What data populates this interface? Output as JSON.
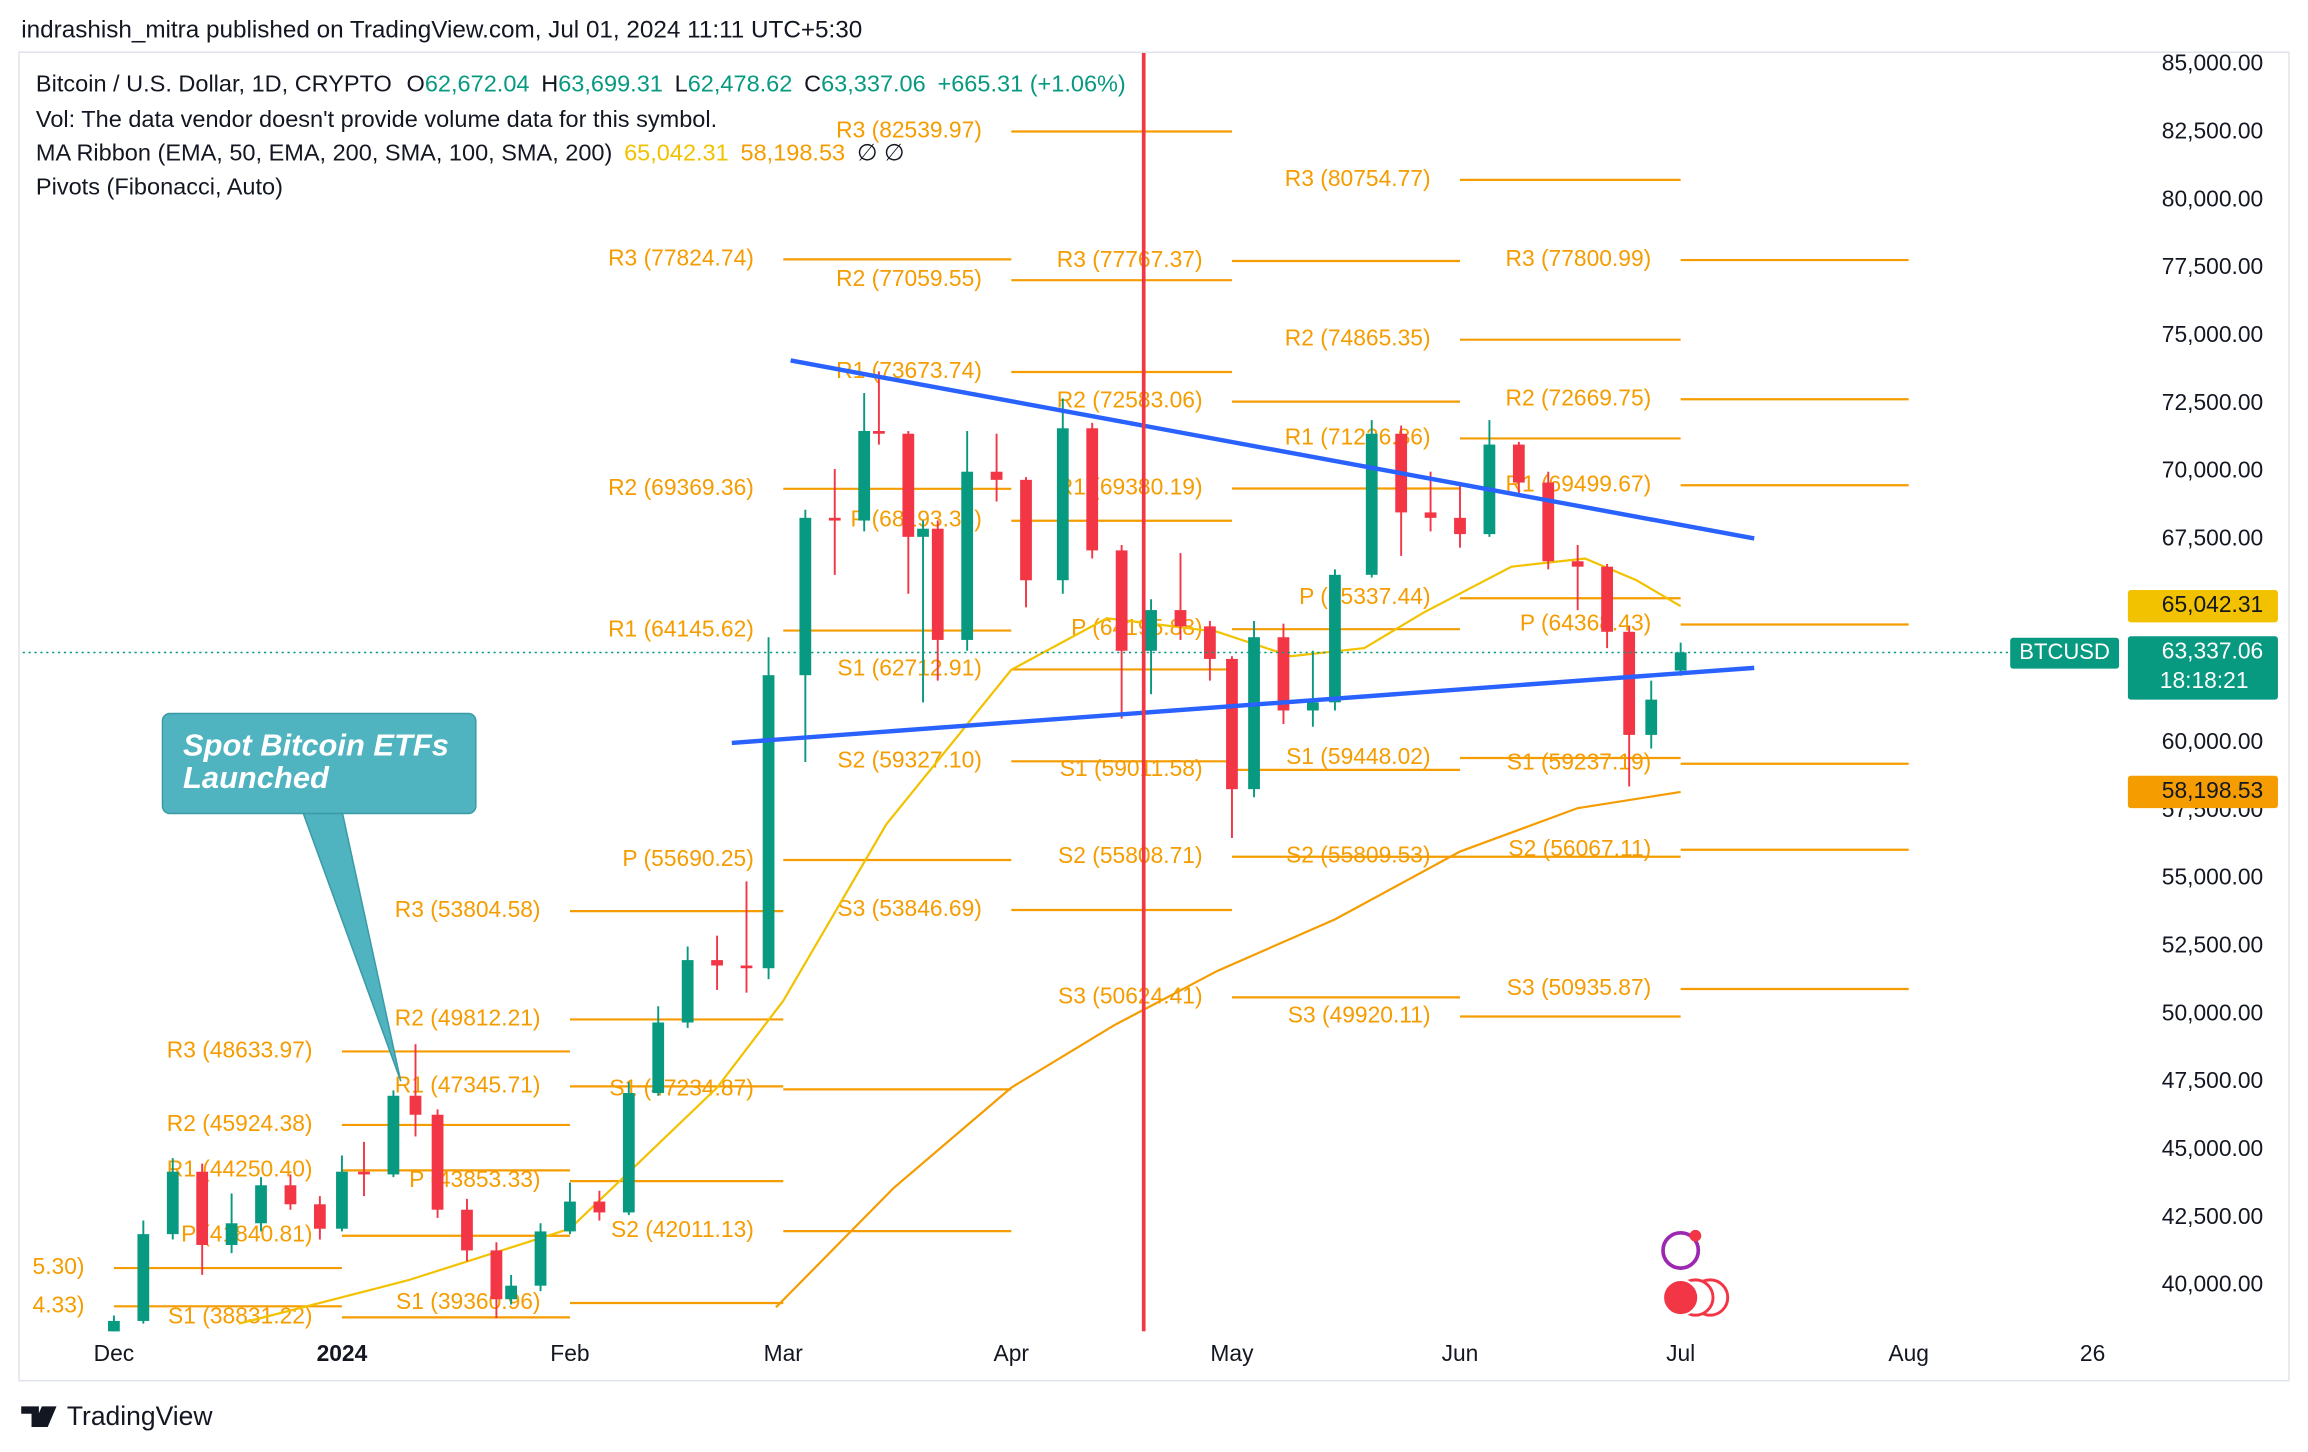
{
  "header": "indrashish_mitra published on TradingView.com, Jul 01, 2024 11:11 UTC+5:30",
  "footer": "TradingView",
  "chart_data": {
    "type": "candlestick",
    "symbol": "Bitcoin / U.S. Dollar, 1D, CRYPTO",
    "ohlc_legend": [
      {
        "key": "O",
        "label": "62,672.04"
      },
      {
        "key": "H",
        "label": "63,699.31"
      },
      {
        "key": "L",
        "label": "62,478.62"
      },
      {
        "key": "C",
        "label": "63,337.06"
      }
    ],
    "change": "+665.31 (+1.06%)",
    "volume_note": "Vol: The data vendor doesn't provide volume data for this symbol.",
    "ma_title": "MA Ribbon (EMA, 50, EMA, 200, SMA, 100, SMA, 200)",
    "ma_na": "∅  ∅",
    "pivots_title": "Pivots (Fibonacci, Auto)",
    "up_color": "#089981",
    "down_color": "#f23645",
    "x": [
      0,
      4,
      8,
      12,
      16,
      20,
      24,
      28,
      31,
      34,
      38,
      41,
      44,
      48,
      52,
      54,
      58,
      62,
      66,
      70,
      74,
      78,
      82,
      86,
      89,
      94,
      98,
      102,
      104,
      108,
      110,
      112,
      116,
      120,
      124,
      129,
      133,
      137,
      141,
      145,
      149,
      152,
      155,
      159,
      163,
      166,
      171,
      175,
      179,
      183,
      187,
      191,
      195,
      199,
      203,
      206,
      209,
      213
    ],
    "open": [
      37700,
      38700,
      41900,
      44200,
      41500,
      42300,
      43700,
      43000,
      42100,
      44200,
      44100,
      47000,
      46300,
      42800,
      41300,
      39500,
      40000,
      42000,
      43100,
      42700,
      47100,
      49700,
      52000,
      51800,
      51700,
      62500,
      68300,
      68200,
      71500,
      71400,
      67600,
      67900,
      63800,
      70000,
      69700,
      66000,
      71600,
      67100,
      63400,
      64900,
      64300,
      63100,
      58300,
      63900,
      61200,
      61500,
      66200,
      71400,
      68500,
      68300,
      67700,
      71000,
      69600,
      66700,
      66500,
      64100,
      60300,
      62672.04
    ],
    "high": [
      38900,
      42400,
      44700,
      44500,
      43400,
      44000,
      44100,
      43300,
      44800,
      45300,
      47200,
      48900,
      46500,
      43200,
      41600,
      40400,
      42300,
      43800,
      43500,
      47500,
      50300,
      52500,
      52900,
      54900,
      63900,
      68600,
      70100,
      72900,
      73700,
      71500,
      68200,
      68200,
      71500,
      71400,
      69800,
      72700,
      71800,
      67300,
      65300,
      67000,
      64500,
      63200,
      64500,
      64400,
      63400,
      66400,
      71900,
      71700,
      70000,
      69500,
      71900,
      71100,
      70000,
      67300,
      66600,
      64300,
      62300,
      63699.31
    ],
    "low": [
      37500,
      38600,
      41700,
      40400,
      41200,
      42000,
      42800,
      41700,
      42000,
      43300,
      44000,
      45500,
      42500,
      40900,
      38800,
      39300,
      39800,
      41900,
      42400,
      42600,
      47000,
      49500,
      50900,
      50800,
      51300,
      59300,
      66200,
      67800,
      71000,
      65500,
      61500,
      62300,
      63400,
      68900,
      65000,
      65500,
      66800,
      60900,
      61800,
      63800,
      62300,
      56500,
      58000,
      60700,
      60600,
      61200,
      66100,
      66900,
      67800,
      67200,
      67600,
      69200,
      66400,
      64900,
      63500,
      58400,
      59800,
      62478.62
    ],
    "close": [
      38700,
      41900,
      44200,
      41500,
      42300,
      43700,
      43000,
      42100,
      44200,
      44100,
      47000,
      46300,
      42800,
      41300,
      39500,
      40000,
      42000,
      43100,
      42700,
      47100,
      49700,
      52000,
      51800,
      51700,
      62500,
      68300,
      68200,
      71500,
      71400,
      67600,
      67900,
      63800,
      70000,
      69700,
      66000,
      71600,
      67100,
      63400,
      64900,
      64300,
      63100,
      58300,
      63900,
      61200,
      61500,
      66200,
      71400,
      68500,
      68300,
      67700,
      71000,
      69600,
      66700,
      66500,
      64100,
      60300,
      61600,
      63337.06
    ],
    "xlim": [
      -12.4,
      272.6
    ],
    "xticks": [
      {
        "value": 0,
        "label": "Dec"
      },
      {
        "value": 31,
        "label": "2024"
      },
      {
        "value": 62,
        "label": "Feb"
      },
      {
        "value": 91,
        "label": "Mar"
      },
      {
        "value": 122,
        "label": "Apr"
      },
      {
        "value": 152,
        "label": "May"
      },
      {
        "value": 183,
        "label": "Jun"
      },
      {
        "value": 213,
        "label": "Jul"
      },
      {
        "value": 244,
        "label": "Aug"
      },
      {
        "value": 269,
        "label": "26"
      }
    ],
    "ylim": [
      38316,
      85488
    ],
    "yticks": [
      {
        "value": 40000,
        "label": "40,000.00"
      },
      {
        "value": 42500,
        "label": "42,500.00"
      },
      {
        "value": 45000,
        "label": "45,000.00"
      },
      {
        "value": 47500,
        "label": "47,500.00"
      },
      {
        "value": 50000,
        "label": "50,000.00"
      },
      {
        "value": 52500,
        "label": "52,500.00"
      },
      {
        "value": 55000,
        "label": "55,000.00"
      },
      {
        "value": 57500,
        "label": "57,500.00"
      },
      {
        "value": 60000,
        "label": "60,000.00"
      },
      {
        "value": 62500,
        "label": "62,500.00"
      },
      {
        "value": 65000,
        "label": "65,000.00"
      },
      {
        "value": 67500,
        "label": "67,500.00"
      },
      {
        "value": 70000,
        "label": "70,000.00"
      },
      {
        "value": 72500,
        "label": "72,500.00"
      },
      {
        "value": 75000,
        "label": "75,000.00"
      },
      {
        "value": 77500,
        "label": "77,500.00"
      },
      {
        "value": 80000,
        "label": "80,000.00"
      },
      {
        "value": 82500,
        "label": "82,500.00"
      },
      {
        "value": 85000,
        "label": "85,000.00"
      }
    ],
    "ma": [
      {
        "color": "#f2c200",
        "last_label": "65,042.31",
        "x": [
          17,
          40,
          62,
          82,
          91,
          105,
          122,
          135,
          150,
          160,
          170,
          178,
          190,
          200,
          207,
          213
        ],
        "values": [
          38600,
          40200,
          42100,
          47300,
          50500,
          57000,
          62700,
          64600,
          64100,
          63200,
          63500,
          64800,
          66500,
          66800,
          66000,
          65042.31
        ]
      },
      {
        "color": "#f59c00",
        "last_label": "58,198.53",
        "x": [
          90,
          106,
          122,
          136,
          150,
          166,
          183,
          199,
          213
        ],
        "values": [
          39200,
          43600,
          47300,
          49600,
          51600,
          53500,
          56000,
          57600,
          58198.53
        ]
      }
    ],
    "pivot_color": "#f59c00",
    "pivots": [
      {
        "start": 0,
        "end": 31,
        "levels": [
          {
            "label": "5.30)",
            "value": 40650
          },
          {
            "label": "4.33)",
            "value": 39240
          }
        ]
      },
      {
        "start": 31,
        "end": 62,
        "levels": [
          {
            "label": "R3 (48633.97)",
            "value": 48633.97
          },
          {
            "label": "R2 (45924.38)",
            "value": 45924.38
          },
          {
            "label": "R1 (44250.40)",
            "value": 44250.4
          },
          {
            "label": "P (41840.81)",
            "value": 41840.81
          },
          {
            "label": "S1 (38831.22)",
            "value": 38831.22
          }
        ]
      },
      {
        "start": 62,
        "end": 91,
        "levels": [
          {
            "label": "R3 (53804.58)",
            "value": 53804.58
          },
          {
            "label": "R2 (49812.21)",
            "value": 49812.21
          },
          {
            "label": "R1 (47345.71)",
            "value": 47345.71
          },
          {
            "label": "P (43853.33)",
            "value": 43853.33
          },
          {
            "label": "S1 (39360.96)",
            "value": 39360.96
          }
        ]
      },
      {
        "start": 91,
        "end": 122,
        "levels": [
          {
            "label": "R3 (77824.74)",
            "value": 77824.74
          },
          {
            "label": "R2 (69369.36)",
            "value": 69369.36
          },
          {
            "label": "R1 (64145.62)",
            "value": 64145.62
          },
          {
            "label": "P (55690.25)",
            "value": 55690.25
          },
          {
            "label": "S1 (47234.87)",
            "value": 47234.87
          },
          {
            "label": "S2 (42011.13)",
            "value": 42011.13
          }
        ]
      },
      {
        "start": 122,
        "end": 152,
        "levels": [
          {
            "label": "R3 (82539.97)",
            "value": 82539.97
          },
          {
            "label": "R2 (77059.55)",
            "value": 77059.55
          },
          {
            "label": "R1 (73673.74)",
            "value": 73673.74
          },
          {
            "label": "P (68193.33)",
            "value": 68193.33
          },
          {
            "label": "S1 (62712.91)",
            "value": 62712.91
          },
          {
            "label": "S2 (59327.10)",
            "value": 59327.1
          },
          {
            "label": "S3 (53846.69)",
            "value": 53846.69
          }
        ]
      },
      {
        "start": 152,
        "end": 183,
        "levels": [
          {
            "label": "R3 (77767.37)",
            "value": 77767.37
          },
          {
            "label": "R2 (72583.06)",
            "value": 72583.06
          },
          {
            "label": "R1 (69380.19)",
            "value": 69380.19
          },
          {
            "label": "P (64195.88)",
            "value": 64195.88
          },
          {
            "label": "S1 (59011.58)",
            "value": 59011.58
          },
          {
            "label": "S2 (55808.71)",
            "value": 55808.71
          },
          {
            "label": "S3 (50624.41)",
            "value": 50624.41
          }
        ]
      },
      {
        "start": 183,
        "end": 213,
        "levels": [
          {
            "label": "R3 (80754.77)",
            "value": 80754.77
          },
          {
            "label": "R2 (74865.35)",
            "value": 74865.35
          },
          {
            "label": "R1 (71226.86)",
            "value": 71226.86
          },
          {
            "label": "P (65337.44)",
            "value": 65337.44
          },
          {
            "label": "S1 (59448.02)",
            "value": 59448.02
          },
          {
            "label": "S2 (55809.53)",
            "value": 55809.53
          },
          {
            "label": "S3 (49920.11)",
            "value": 49920.11
          }
        ]
      },
      {
        "start": 213,
        "end": 244,
        "levels": [
          {
            "label": "R3 (77800.99)",
            "value": 77800.99
          },
          {
            "label": "R2 (72669.75)",
            "value": 72669.75
          },
          {
            "label": "R1 (69499.67)",
            "value": 69499.67
          },
          {
            "label": "P (64368.43)",
            "value": 64368.43
          },
          {
            "label": "S1 (59237.19)",
            "value": 59237.19
          },
          {
            "label": "S2 (56067.11)",
            "value": 56067.11
          },
          {
            "label": "S3 (50935.87)",
            "value": 50935.87
          }
        ]
      }
    ],
    "trendlines": [
      {
        "color": "#2962ff",
        "x": [
          92,
          223
        ],
        "values": [
          74100,
          67540
        ]
      },
      {
        "color": "#2962ff",
        "x": [
          84,
          223
        ],
        "values": [
          60005,
          62770
        ]
      }
    ],
    "vline": {
      "x": 140,
      "color": "#f23645"
    },
    "annotation": {
      "lines": [
        "Spot Bitcoin ETFs",
        "Launched"
      ],
      "x": 39,
      "value": 47535,
      "color": "#4fb3c0"
    },
    "price_tag": {
      "name": "BTCUSD",
      "label": "63,337.06",
      "countdown": "18:18:21",
      "color": "#089981"
    }
  }
}
